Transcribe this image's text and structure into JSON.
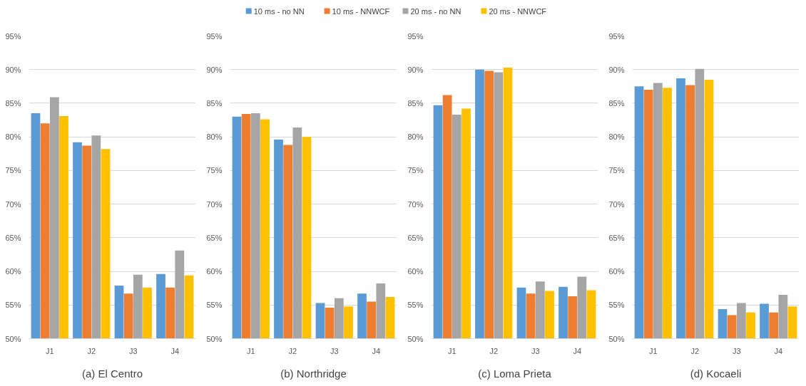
{
  "chart_data": [
    {
      "type": "bar",
      "xlabel": "(a) El Centro",
      "categories": [
        "J1",
        "J2",
        "J3",
        "J4"
      ],
      "ylim": [
        50,
        95
      ],
      "yticks": [
        {
          "value": 50,
          "label": "50%"
        },
        {
          "value": 55,
          "label": "55%"
        },
        {
          "value": 60,
          "label": "60%"
        },
        {
          "value": 65,
          "label": "65%"
        },
        {
          "value": 70,
          "label": "70%"
        },
        {
          "value": 75,
          "label": "75%"
        },
        {
          "value": 80,
          "label": "80%"
        },
        {
          "value": 85,
          "label": "85%"
        },
        {
          "value": 90,
          "label": "90%"
        },
        {
          "value": 95,
          "label": "95%"
        }
      ],
      "grid": "y",
      "legend": "top",
      "series": [
        {
          "name": "10 ms - no NN",
          "color": "#5b9bd5",
          "values": [
            83.5,
            79.2,
            57.9,
            59.6
          ]
        },
        {
          "name": "10 ms - NNWCF",
          "color": "#ed7d31",
          "values": [
            82.0,
            78.7,
            56.7,
            57.6
          ]
        },
        {
          "name": "20 ms - no NN",
          "color": "#a5a5a5",
          "values": [
            85.9,
            80.2,
            59.5,
            63.1
          ]
        },
        {
          "name": "20 ms - NNWCF",
          "color": "#ffc000",
          "values": [
            83.1,
            78.2,
            57.6,
            59.4
          ]
        }
      ]
    },
    {
      "type": "bar",
      "xlabel": "(b) Northridge",
      "categories": [
        "J1",
        "J2",
        "J3",
        "J4"
      ],
      "ylim": [
        50,
        95
      ],
      "yticks": [
        {
          "value": 50,
          "label": "50%"
        },
        {
          "value": 55,
          "label": "55%"
        },
        {
          "value": 60,
          "label": "60%"
        },
        {
          "value": 65,
          "label": "65%"
        },
        {
          "value": 70,
          "label": "70%"
        },
        {
          "value": 75,
          "label": "75%"
        },
        {
          "value": 80,
          "label": "80%"
        },
        {
          "value": 85,
          "label": "85%"
        },
        {
          "value": 90,
          "label": "90%"
        },
        {
          "value": 95,
          "label": "95%"
        }
      ],
      "grid": "y",
      "series": [
        {
          "color": "#5b9bd5",
          "values": [
            83.0,
            79.6,
            55.3,
            56.7
          ]
        },
        {
          "color": "#ed7d31",
          "values": [
            83.4,
            78.8,
            54.6,
            55.5
          ]
        },
        {
          "color": "#a5a5a5",
          "values": [
            83.5,
            81.4,
            56.0,
            58.2
          ]
        },
        {
          "color": "#ffc000",
          "values": [
            82.6,
            80.0,
            54.8,
            56.2
          ]
        }
      ]
    },
    {
      "type": "bar",
      "xlabel": "(c) Loma Prieta",
      "categories": [
        "J1",
        "J2",
        "J3",
        "J4"
      ],
      "ylim": [
        50,
        95
      ],
      "yticks": [
        {
          "value": 50,
          "label": "50%"
        },
        {
          "value": 55,
          "label": "55%"
        },
        {
          "value": 60,
          "label": "60%"
        },
        {
          "value": 65,
          "label": "65%"
        },
        {
          "value": 70,
          "label": "70%"
        },
        {
          "value": 75,
          "label": "75%"
        },
        {
          "value": 80,
          "label": "80%"
        },
        {
          "value": 85,
          "label": "85%"
        },
        {
          "value": 90,
          "label": "90%"
        },
        {
          "value": 95,
          "label": "95%"
        }
      ],
      "grid": "y",
      "series": [
        {
          "color": "#5b9bd5",
          "values": [
            84.7,
            90.0,
            57.6,
            57.7
          ]
        },
        {
          "color": "#ed7d31",
          "values": [
            86.2,
            89.8,
            56.7,
            56.3
          ]
        },
        {
          "color": "#a5a5a5",
          "values": [
            83.3,
            89.6,
            58.5,
            59.2
          ]
        },
        {
          "color": "#ffc000",
          "values": [
            84.2,
            90.3,
            57.1,
            57.2
          ]
        }
      ]
    },
    {
      "type": "bar",
      "xlabel": "(d) Kocaeli",
      "categories": [
        "J1",
        "J2",
        "J3",
        "J4"
      ],
      "ylim": [
        50,
        95
      ],
      "yticks": [
        {
          "value": 50,
          "label": "50%"
        },
        {
          "value": 55,
          "label": "55%"
        },
        {
          "value": 60,
          "label": "60%"
        },
        {
          "value": 65,
          "label": "65%"
        },
        {
          "value": 70,
          "label": "70%"
        },
        {
          "value": 75,
          "label": "75%"
        },
        {
          "value": 80,
          "label": "80%"
        },
        {
          "value": 85,
          "label": "85%"
        },
        {
          "value": 90,
          "label": "90%"
        },
        {
          "value": 95,
          "label": "95%"
        }
      ],
      "grid": "y",
      "series": [
        {
          "color": "#5b9bd5",
          "values": [
            87.5,
            88.7,
            54.4,
            55.2
          ]
        },
        {
          "color": "#ed7d31",
          "values": [
            87.0,
            87.7,
            53.5,
            53.9
          ]
        },
        {
          "color": "#a5a5a5",
          "values": [
            88.0,
            90.1,
            55.3,
            56.5
          ]
        },
        {
          "color": "#ffc000",
          "values": [
            87.3,
            88.5,
            53.9,
            54.8
          ]
        }
      ]
    }
  ]
}
